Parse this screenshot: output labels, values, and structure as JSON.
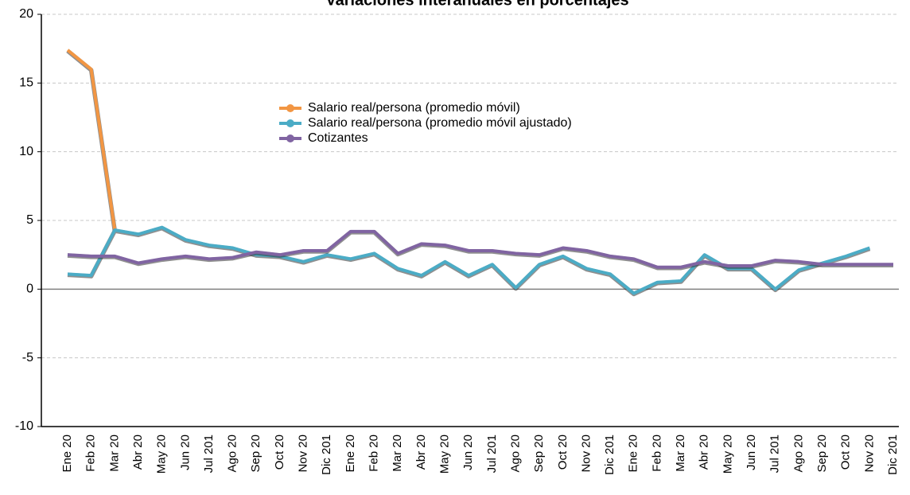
{
  "chart_data": {
    "type": "line",
    "title": "Variaciones interanuales en porcentajes",
    "categories": [
      "Ene 20",
      "Feb 20",
      "Mar 20",
      "Abr 20",
      "May 20",
      "Jun 20",
      "Jul 201",
      "Ago 20",
      "Sep 20",
      "Oct 20",
      "Nov 20",
      "Dic 201",
      "Ene 20",
      "Feb 20",
      "Mar 20",
      "Abr 20",
      "May 20",
      "Jun 20",
      "Jul 201",
      "Ago 20",
      "Sep 20",
      "Oct 20",
      "Nov 20",
      "Dic 201",
      "Ene 20",
      "Feb 20",
      "Mar 20",
      "Abr 20",
      "May 20",
      "Jun 20",
      "Jul 201",
      "Ago 20",
      "Sep 20",
      "Oct 20",
      "Nov 20",
      "Dic 201"
    ],
    "series": [
      {
        "name": "Salario real/persona (promedio móvil)",
        "color": "#f29643",
        "values": [
          17.4,
          16.0,
          4.3,
          null,
          null,
          null,
          null,
          null,
          null,
          null,
          null,
          null,
          null,
          null,
          null,
          null,
          null,
          null,
          null,
          null,
          null,
          null,
          null,
          null,
          null,
          null,
          null,
          null,
          null,
          null,
          null,
          null,
          null,
          null,
          null,
          null
        ]
      },
      {
        "name": "Salario real/persona (promedio móvil ajustado)",
        "color": "#4bacc6",
        "values": [
          1.1,
          1.0,
          4.3,
          4.0,
          4.5,
          3.6,
          3.2,
          3.0,
          2.5,
          2.4,
          2.0,
          2.5,
          2.2,
          2.6,
          1.5,
          1.0,
          2.0,
          1.0,
          1.8,
          0.1,
          1.8,
          2.4,
          1.5,
          1.1,
          -0.3,
          0.5,
          0.6,
          2.5,
          1.5,
          1.5,
          0.0,
          1.4,
          1.9,
          2.4,
          3.0,
          null
        ]
      },
      {
        "name": "Cotizantes",
        "color": "#8064a2",
        "values": [
          2.5,
          2.4,
          2.4,
          1.9,
          2.2,
          2.4,
          2.2,
          2.3,
          2.7,
          2.5,
          2.8,
          2.8,
          4.2,
          4.2,
          2.6,
          3.3,
          3.2,
          2.8,
          2.8,
          2.6,
          2.5,
          3.0,
          2.8,
          2.4,
          2.2,
          1.6,
          1.6,
          2.0,
          1.7,
          1.7,
          2.1,
          2.0,
          1.8,
          1.8,
          1.8,
          1.8
        ]
      }
    ],
    "ylim": [
      -10,
      20
    ],
    "yticks": [
      -10,
      -5,
      0,
      5,
      10,
      15,
      20
    ],
    "grid": true,
    "legend": "top"
  }
}
